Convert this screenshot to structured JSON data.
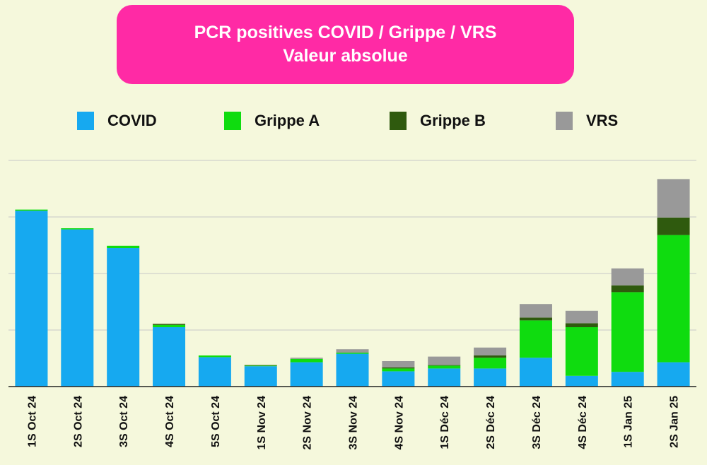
{
  "chart_data": {
    "type": "bar",
    "stacked": true,
    "title": "PCR positives COVID / Grippe / VRS",
    "subtitle": "Valeur absolue",
    "xlabel": "",
    "ylabel": "",
    "ylim": [
      0,
      400
    ],
    "grid": true,
    "legend_position": "top",
    "categories": [
      "1S Oct 24",
      "2S Oct 24",
      "3S Oct 24",
      "4S Oct 24",
      "5S Oct 24",
      "1S Nov 24",
      "2S Nov 24",
      "3S Nov 24",
      "4S Nov 24",
      "1S Déc 24",
      "2S Déc 24",
      "3S Déc 24",
      "4S Déc 24",
      "1S Jan 25",
      "2S Jan 25"
    ],
    "series": [
      {
        "name": "COVID",
        "color": "#16a9f0",
        "values": [
          311,
          278,
          245,
          105,
          52,
          36,
          43,
          58,
          27,
          32,
          32,
          51,
          19,
          26,
          43
        ]
      },
      {
        "name": "Grippe A",
        "color": "#0fdc0f",
        "values": [
          2,
          2,
          4,
          4,
          3,
          1,
          6,
          2,
          5,
          5,
          19,
          66,
          86,
          141,
          225
        ]
      },
      {
        "name": "Grippe B",
        "color": "#2f5a0e",
        "values": [
          0,
          0,
          0,
          2,
          0,
          1,
          0,
          0,
          2,
          1,
          4,
          5,
          7,
          12,
          31
        ]
      },
      {
        "name": "VRS",
        "color": "#999999",
        "values": [
          0,
          0,
          0,
          0,
          0,
          0,
          2,
          6,
          11,
          15,
          14,
          24,
          22,
          30,
          68
        ]
      }
    ]
  }
}
